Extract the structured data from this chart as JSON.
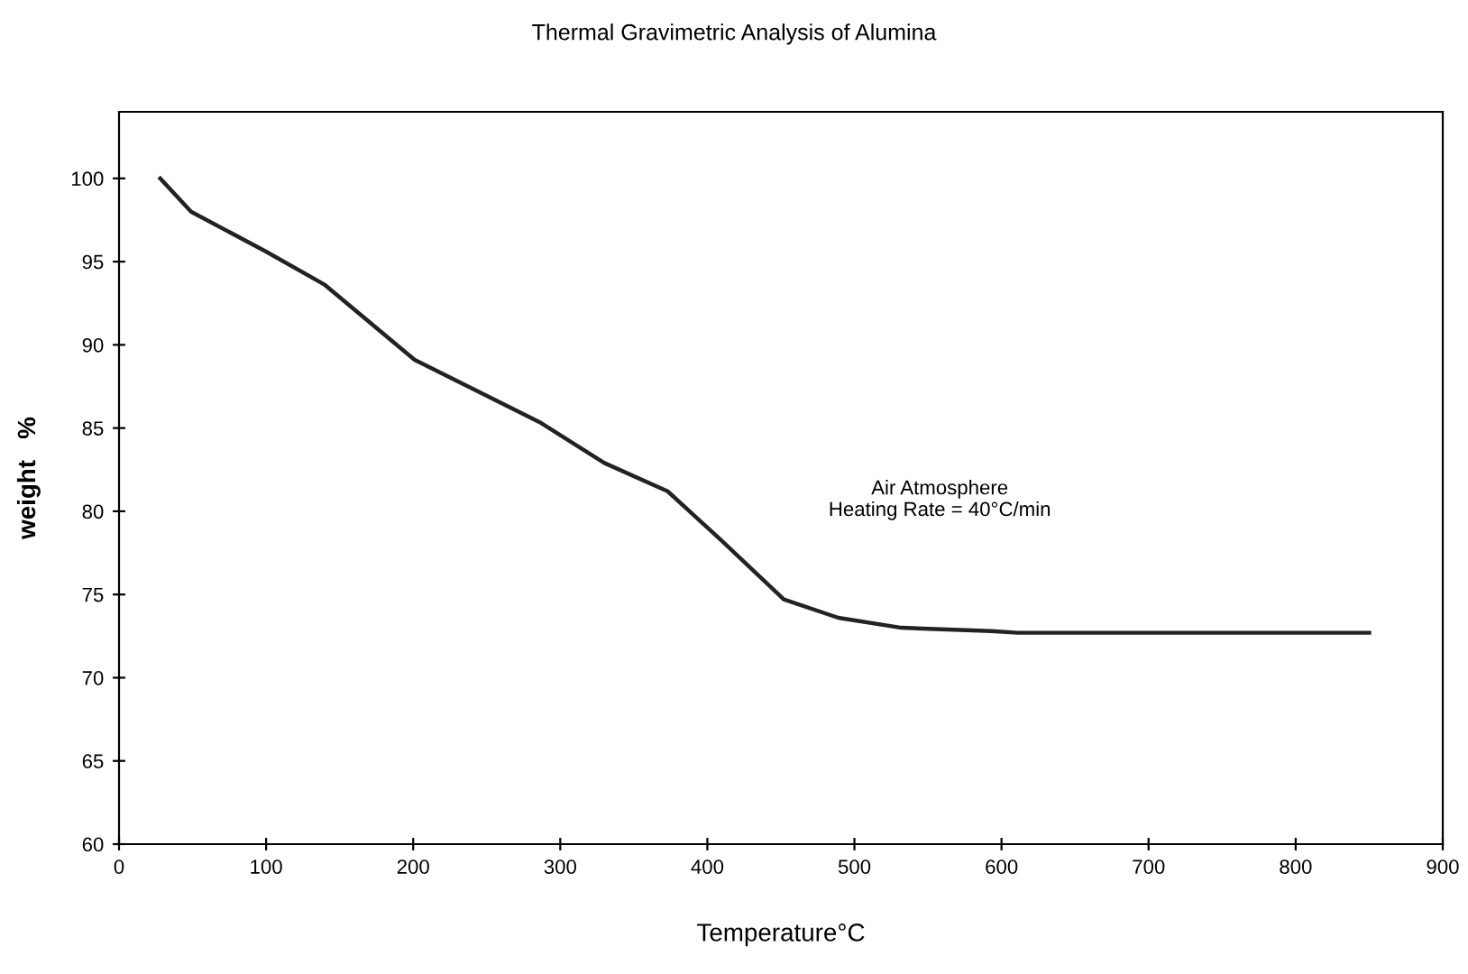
{
  "chart_data": {
    "type": "line",
    "title": "Thermal Gravimetric Analysis of Alumina",
    "xlabel": "Temperature°C",
    "ylabel": "weight   %",
    "annotations": [
      "Air Atmosphere\nHeating Rate = 40°C/min"
    ],
    "series": [
      {
        "color": "#222222",
        "x": [
          28,
          49,
          100,
          140,
          201,
          287,
          330,
          373,
          409,
          452,
          489,
          532,
          593,
          611,
          850
        ],
        "values": [
          100,
          98.0,
          95.6,
          93.6,
          89.1,
          85.3,
          82.9,
          81.2,
          78.3,
          74.7,
          73.6,
          73.0,
          72.8,
          72.7,
          72.7
        ]
      }
    ],
    "xlim": [
      0,
      900
    ],
    "xticks": [
      0,
      100,
      200,
      300,
      400,
      500,
      600,
      700,
      800,
      900
    ],
    "ylim": [
      60,
      104
    ],
    "yticks": [
      60,
      65,
      70,
      75,
      80,
      85,
      90,
      95,
      100
    ],
    "grid": false,
    "legend": false,
    "marker": "none",
    "line_style": "solid"
  }
}
